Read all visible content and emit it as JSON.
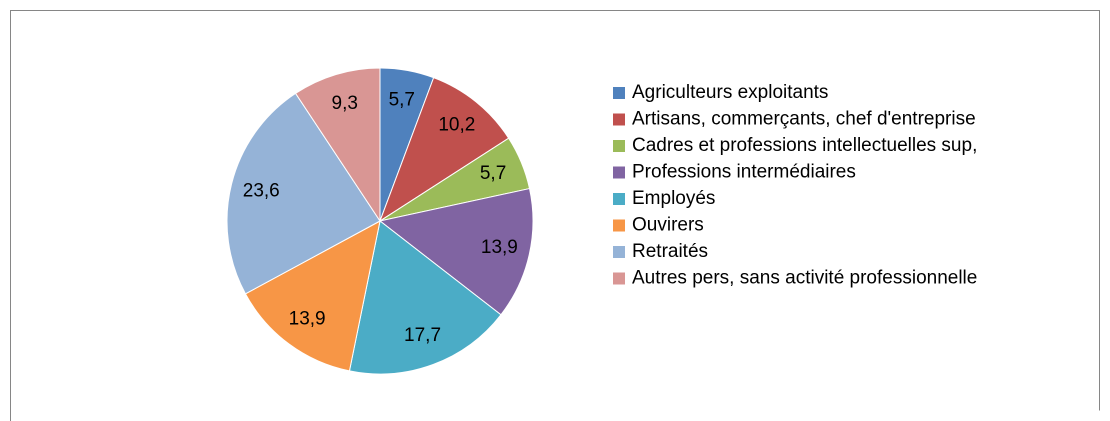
{
  "chart_data": {
    "type": "pie",
    "categories": [
      "Agriculteurs exploitants",
      "Artisans, commerçants, chef d'entreprise",
      "Cadres et professions intellectuelles sup,",
      "Professions intermédiaires",
      "Employés",
      "Ouvirers",
      "Retraités",
      "Autres pers, sans activité professionnelle"
    ],
    "values": [
      5.7,
      10.2,
      5.7,
      13.9,
      17.7,
      13.9,
      23.6,
      9.3
    ],
    "value_labels": [
      "5,7",
      "10,2",
      "5,7",
      "13,9",
      "17,7",
      "13,9",
      "23,6",
      "9,3"
    ],
    "colors": [
      "#4f81bd",
      "#c0504d",
      "#9bbb59",
      "#8064a2",
      "#4bacc6",
      "#f79646",
      "#95b3d7",
      "#d99694"
    ],
    "legend": "right"
  }
}
